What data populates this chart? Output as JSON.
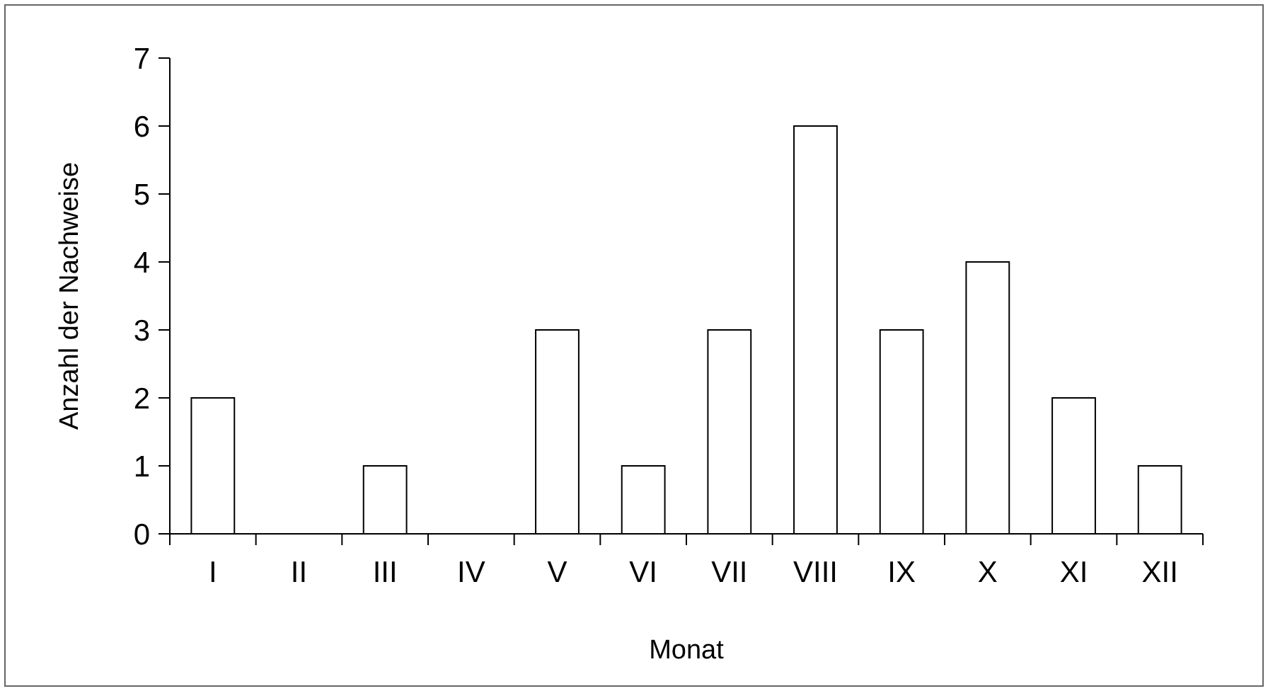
{
  "chart_data": {
    "type": "bar",
    "xlabel": "Monat",
    "ylabel": "Anzahl der Nachweise",
    "categories": [
      "I",
      "II",
      "III",
      "IV",
      "V",
      "VI",
      "VII",
      "VIII",
      "IX",
      "X",
      "XI",
      "XII"
    ],
    "values": [
      2,
      0,
      1,
      0,
      3,
      1,
      3,
      6,
      3,
      4,
      2,
      1
    ],
    "color": "#ffffff",
    "ylim": [
      0,
      7
    ],
    "yticks": [
      0,
      1,
      2,
      3,
      4,
      5,
      6,
      7
    ],
    "grid": false
  }
}
